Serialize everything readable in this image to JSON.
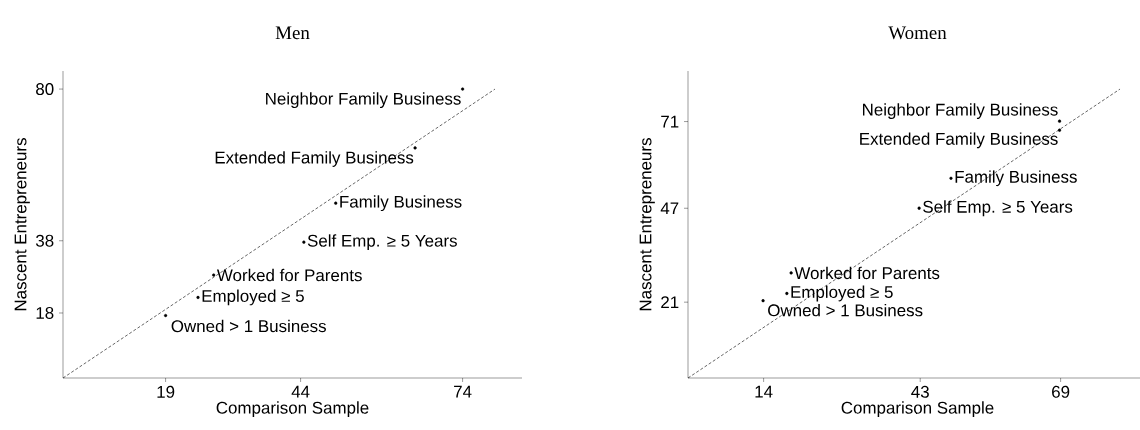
{
  "chart_data": [
    {
      "type": "scatter",
      "title": "Men",
      "xlabel": "Comparison Sample",
      "ylabel": "Nascent Entrepreneurs",
      "xlim": [
        0,
        85
      ],
      "ylim": [
        0,
        85
      ],
      "xticks": [
        19,
        44,
        74
      ],
      "yticks": [
        18,
        38,
        80
      ],
      "series": [
        {
          "type": "scatter",
          "color": "#000000",
          "marker": "circle",
          "x": [
            74,
            65.2,
            50.5,
            44.6,
            27.9,
            25,
            19
          ],
          "values": [
            80,
            63.7,
            48.4,
            37.6,
            28.5,
            22.3,
            17.3
          ]
        },
        {
          "type": "line",
          "color": "#000000",
          "line_style": "dashed",
          "marker": "none",
          "x": [
            0,
            80
          ],
          "values": [
            0,
            80
          ]
        }
      ],
      "annotations": [
        {
          "text": "Neighbor Family Business",
          "x": 74,
          "y": 80
        },
        {
          "text": "Extended Family Business",
          "x": 65.2,
          "y": 63.7
        },
        {
          "text": "Family Business",
          "x": 50.5,
          "y": 48.4
        },
        {
          "text": "Self Emp. ≥ 5 Years",
          "x": 44.6,
          "y": 37.6
        },
        {
          "text": "Worked for Parents",
          "x": 27.9,
          "y": 28.5
        },
        {
          "text": "Employed ≥ 5",
          "x": 25,
          "y": 22.3
        },
        {
          "text": "Owned > 1 Business",
          "x": 19,
          "y": 17.3
        }
      ]
    },
    {
      "type": "scatter",
      "title": "Women",
      "xlabel": "Comparison Sample",
      "ylabel": "Nascent Entrepreneurs",
      "xlim": [
        0,
        85
      ],
      "ylim": [
        0,
        85
      ],
      "xticks": [
        14,
        43,
        69
      ],
      "yticks": [
        21,
        47,
        71
      ],
      "series": [
        {
          "type": "scatter",
          "color": "#000000",
          "marker": "circle",
          "x": [
            68.8,
            68.8,
            48.7,
            42.8,
            19.1,
            18.3,
            13.9
          ],
          "values": [
            71.1,
            68.6,
            55.3,
            47,
            29.1,
            23.4,
            21.4
          ]
        },
        {
          "type": "line",
          "color": "#000000",
          "line_style": "dashed",
          "marker": "none",
          "x": [
            0,
            80
          ],
          "values": [
            0,
            80
          ]
        }
      ],
      "annotations": [
        {
          "text": "Neighbor Family Business",
          "x": 68.8,
          "y": 71.1
        },
        {
          "text": "Extended Family Business",
          "x": 68.8,
          "y": 68.6
        },
        {
          "text": "Family Business",
          "x": 48.7,
          "y": 55.3
        },
        {
          "text": "Self Emp. ≥ 5 Years",
          "x": 42.8,
          "y": 47
        },
        {
          "text": "Worked for Parents",
          "x": 19.1,
          "y": 29.1
        },
        {
          "text": "Employed ≥ 5",
          "x": 18.3,
          "y": 23.4
        },
        {
          "text": "Owned > 1 Business",
          "x": 13.9,
          "y": 21.4
        }
      ]
    }
  ]
}
